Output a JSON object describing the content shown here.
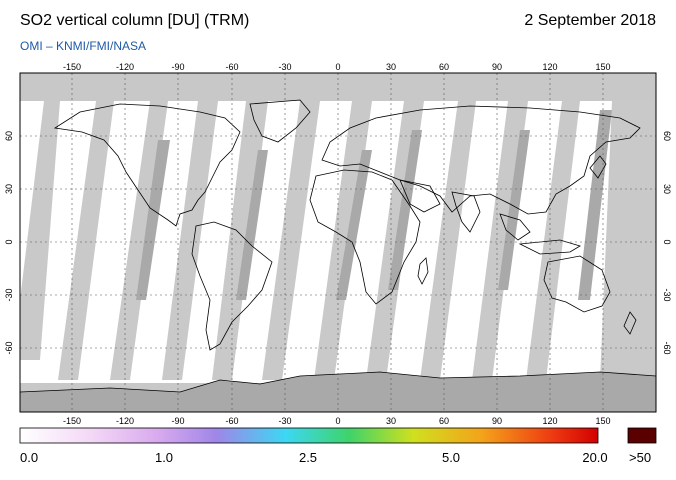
{
  "header": {
    "title": "SO2 vertical column [DU] (TRM)",
    "date": "2 September 2018",
    "source": "OMI  –  KNMI/FMI/NASA"
  },
  "map": {
    "projection": "equirectangular",
    "lon_ticks": [
      -150,
      -120,
      -90,
      -60,
      -30,
      0,
      30,
      60,
      90,
      120,
      150
    ],
    "lat_ticks": [
      60,
      30,
      0,
      -30,
      -60
    ],
    "lon_tick_labels": [
      "-150",
      "-120",
      "-90",
      "-60",
      "-30",
      "0",
      "30",
      "60",
      "90",
      "120",
      "150"
    ],
    "lat_tick_labels": [
      "60",
      "30",
      "0",
      "-30",
      "-60"
    ],
    "gridlines": true,
    "colors": {
      "no_data_gap": "#c8c8c8",
      "overlap_band": "#a8a8a8",
      "low_value": "#ffffff",
      "coastline": "#000000"
    }
  },
  "colorbar": {
    "labels": [
      "0.0",
      "1.0",
      "2.5",
      "5.0",
      "20.0"
    ],
    "overflow_label": ">50",
    "overflow_color": "#5a0000",
    "stops": [
      "#ffffff",
      "#f4d9f7",
      "#d8a9ee",
      "#9f86e8",
      "#3cd8f2",
      "#3fd36a",
      "#cfe01e",
      "#f4a21a",
      "#ee3b12",
      "#d20000"
    ]
  }
}
